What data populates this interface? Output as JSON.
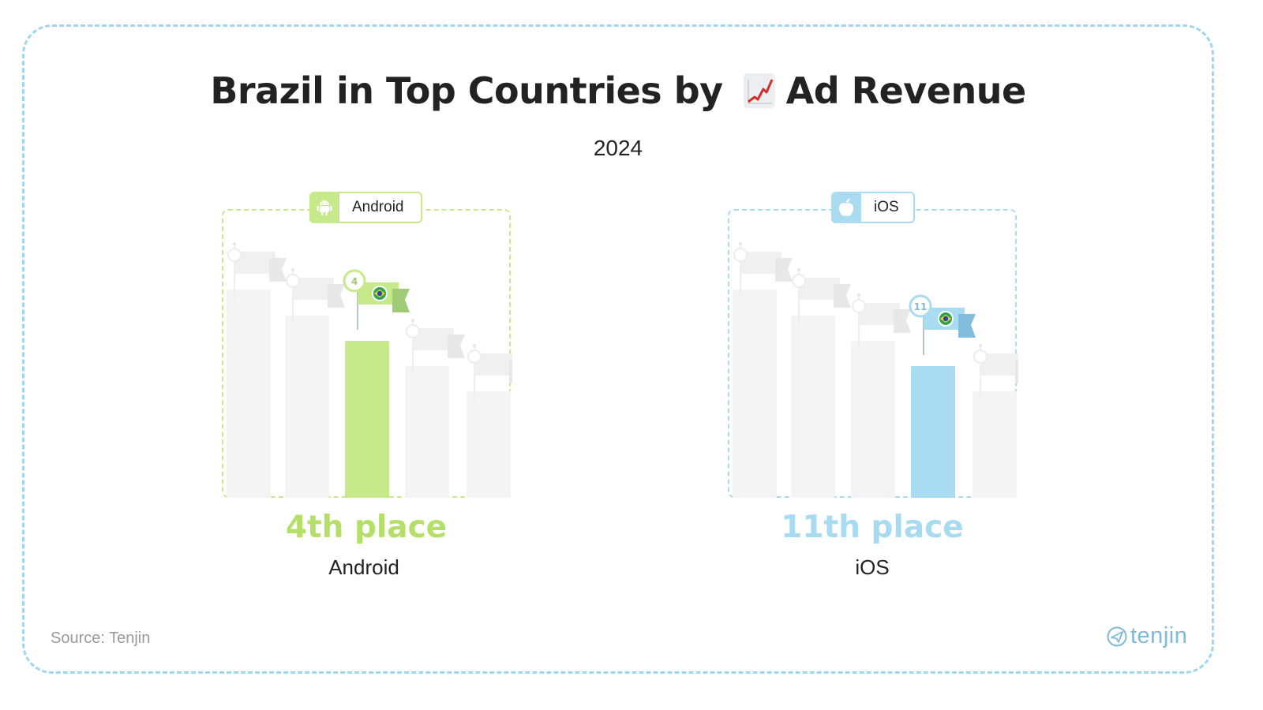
{
  "title_main": "Brazil in Top Countries by",
  "title_emoji": "chart-increasing-icon",
  "title_end": "Ad Revenue",
  "subtitle": "2024",
  "colors": {
    "android": "#c6e98a",
    "ios": "#a9dcf1",
    "frame": "#9fd7ee",
    "inactive_bar": "#f4f4f4"
  },
  "chart_data": [
    {
      "type": "bar",
      "platform": "Android",
      "badge_label": "Android",
      "badge_icon": "android-icon",
      "rank": 4,
      "rank_badge": "4",
      "highlight_flag": "brazil-flag-icon",
      "place_text": "4th place",
      "platform_label": "Android"
    },
    {
      "type": "bar",
      "platform": "iOS",
      "badge_label": "iOS",
      "badge_icon": "apple-icon",
      "rank": 11,
      "rank_badge": "11",
      "highlight_flag": "brazil-flag-icon",
      "place_text": "11th place",
      "platform_label": "iOS"
    }
  ],
  "source": "Source: Tenjin",
  "brand": "tenjin"
}
